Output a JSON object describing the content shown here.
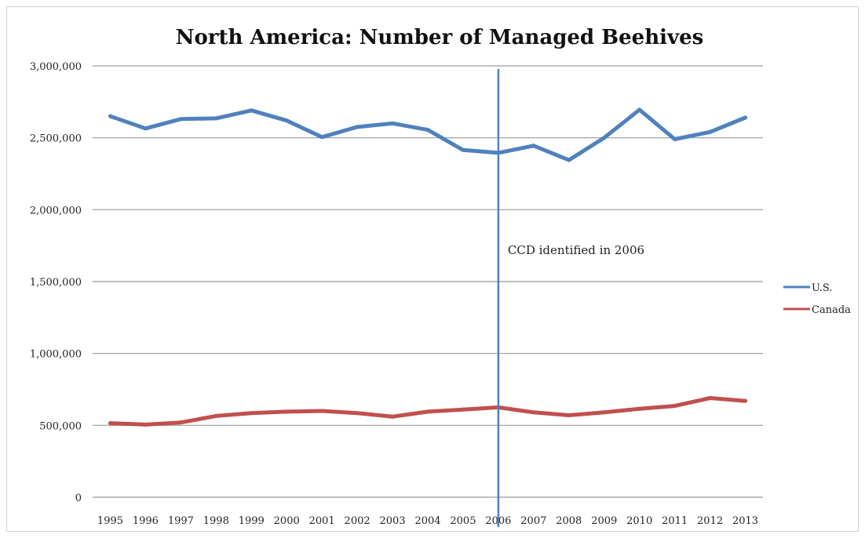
{
  "chart_data": {
    "type": "line",
    "title": "North America: Number of Managed Beehives",
    "xlabel": "",
    "ylabel": "",
    "ylim": [
      0,
      3000000
    ],
    "yticks": [
      0,
      500000,
      1000000,
      1500000,
      2000000,
      2500000,
      3000000
    ],
    "ytick_labels": [
      "0",
      "500,000",
      "1,000,000",
      "1,500,000",
      "2,000,000",
      "2,500,000",
      "3,000,000"
    ],
    "categories": [
      "1995",
      "1996",
      "1997",
      "1998",
      "1999",
      "2000",
      "2001",
      "2002",
      "2003",
      "2004",
      "2005",
      "2006",
      "2007",
      "2008",
      "2009",
      "2010",
      "2011",
      "2012",
      "2013"
    ],
    "series": [
      {
        "name": "U.S.",
        "color": "#4f81bd",
        "values": [
          2650000,
          2565000,
          2630000,
          2635000,
          2690000,
          2620000,
          2505000,
          2575000,
          2600000,
          2555000,
          2415000,
          2395000,
          2445000,
          2345000,
          2500000,
          2695000,
          2490000,
          2540000,
          2640000
        ]
      },
      {
        "name": "Canada",
        "color": "#c0504d",
        "values": [
          515000,
          505000,
          520000,
          565000,
          585000,
          595000,
          600000,
          585000,
          560000,
          595000,
          610000,
          625000,
          590000,
          570000,
          590000,
          615000,
          635000,
          690000,
          670000
        ]
      }
    ],
    "grid": true,
    "legend_position": "right",
    "annotation": {
      "text": "CCD identified in 2006",
      "category": "2006",
      "color": "#4f81bd"
    }
  }
}
